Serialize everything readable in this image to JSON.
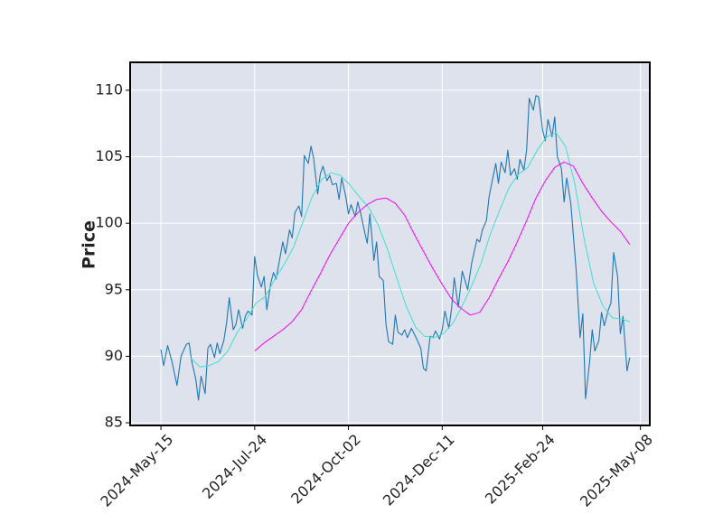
{
  "chart_data": {
    "type": "line",
    "title": "",
    "xlabel": "",
    "ylabel": "Price",
    "x_tick_labels": [
      "2024-May-15",
      "2024-Jul-24",
      "2024-Oct-02",
      "2024-Dec-11",
      "2025-Feb-24",
      "2025-May-08"
    ],
    "y_ticks": [
      85,
      90,
      95,
      100,
      105,
      110
    ],
    "ylim": [
      84.8,
      112.1
    ],
    "xlim": [
      "2024-04-22",
      "2025-05-15"
    ],
    "grid": true,
    "colors": {
      "plot_background": "#dde2ed",
      "grid": "#ffffff",
      "frame": "#000000"
    },
    "series": [
      {
        "color": "#1f77b4",
        "points": [
          [
            "2024-05-15",
            90.5
          ],
          [
            "2024-05-17",
            89.3
          ],
          [
            "2024-05-20",
            90.8
          ],
          [
            "2024-05-23",
            89.7
          ],
          [
            "2024-05-27",
            87.8
          ],
          [
            "2024-05-30",
            90.0
          ],
          [
            "2024-06-03",
            90.9
          ],
          [
            "2024-06-05",
            91.0
          ],
          [
            "2024-06-07",
            89.6
          ],
          [
            "2024-06-10",
            88.3
          ],
          [
            "2024-06-12",
            86.7
          ],
          [
            "2024-06-14",
            88.5
          ],
          [
            "2024-06-17",
            87.2
          ],
          [
            "2024-06-19",
            90.6
          ],
          [
            "2024-06-21",
            90.9
          ],
          [
            "2024-06-24",
            89.9
          ],
          [
            "2024-06-26",
            91.0
          ],
          [
            "2024-06-28",
            90.2
          ],
          [
            "2024-07-01",
            91.2
          ],
          [
            "2024-07-03",
            92.5
          ],
          [
            "2024-07-05",
            94.4
          ],
          [
            "2024-07-08",
            92.0
          ],
          [
            "2024-07-10",
            92.4
          ],
          [
            "2024-07-12",
            93.5
          ],
          [
            "2024-07-15",
            92.1
          ],
          [
            "2024-07-17",
            93.0
          ],
          [
            "2024-07-19",
            93.4
          ],
          [
            "2024-07-22",
            93.1
          ],
          [
            "2024-07-24",
            97.5
          ],
          [
            "2024-07-26",
            96.1
          ],
          [
            "2024-07-29",
            95.2
          ],
          [
            "2024-07-31",
            96.0
          ],
          [
            "2024-08-02",
            93.5
          ],
          [
            "2024-08-05",
            95.5
          ],
          [
            "2024-08-07",
            96.3
          ],
          [
            "2024-08-09",
            95.8
          ],
          [
            "2024-08-12",
            97.5
          ],
          [
            "2024-08-14",
            98.6
          ],
          [
            "2024-08-16",
            97.7
          ],
          [
            "2024-08-19",
            99.5
          ],
          [
            "2024-08-21",
            98.9
          ],
          [
            "2024-08-23",
            100.8
          ],
          [
            "2024-08-26",
            101.3
          ],
          [
            "2024-08-28",
            100.5
          ],
          [
            "2024-08-30",
            105.1
          ],
          [
            "2024-09-02",
            104.5
          ],
          [
            "2024-09-04",
            105.8
          ],
          [
            "2024-09-06",
            104.9
          ],
          [
            "2024-09-09",
            102.2
          ],
          [
            "2024-09-11",
            103.7
          ],
          [
            "2024-09-13",
            104.3
          ],
          [
            "2024-09-16",
            103.2
          ],
          [
            "2024-09-18",
            103.6
          ],
          [
            "2024-09-20",
            102.9
          ],
          [
            "2024-09-23",
            103.0
          ],
          [
            "2024-09-25",
            101.8
          ],
          [
            "2024-09-27",
            103.4
          ],
          [
            "2024-09-30",
            102.0
          ],
          [
            "2024-10-02",
            100.7
          ],
          [
            "2024-10-04",
            101.4
          ],
          [
            "2024-10-07",
            100.5
          ],
          [
            "2024-10-09",
            101.6
          ],
          [
            "2024-10-11",
            100.8
          ],
          [
            "2024-10-14",
            99.4
          ],
          [
            "2024-10-16",
            98.5
          ],
          [
            "2024-10-18",
            100.7
          ],
          [
            "2024-10-21",
            97.2
          ],
          [
            "2024-10-23",
            98.6
          ],
          [
            "2024-10-25",
            96.0
          ],
          [
            "2024-10-28",
            95.7
          ],
          [
            "2024-10-30",
            92.4
          ],
          [
            "2024-11-01",
            91.1
          ],
          [
            "2024-11-04",
            90.9
          ],
          [
            "2024-11-06",
            93.1
          ],
          [
            "2024-11-08",
            91.8
          ],
          [
            "2024-11-11",
            91.6
          ],
          [
            "2024-11-13",
            92.0
          ],
          [
            "2024-11-15",
            91.4
          ],
          [
            "2024-11-18",
            92.1
          ],
          [
            "2024-11-20",
            91.7
          ],
          [
            "2024-11-22",
            91.3
          ],
          [
            "2024-11-25",
            90.6
          ],
          [
            "2024-11-27",
            89.1
          ],
          [
            "2024-11-29",
            88.9
          ],
          [
            "2024-12-02",
            91.5
          ],
          [
            "2024-12-04",
            91.4
          ],
          [
            "2024-12-06",
            91.9
          ],
          [
            "2024-12-09",
            91.3
          ],
          [
            "2024-12-11",
            92.0
          ],
          [
            "2024-12-13",
            93.4
          ],
          [
            "2024-12-16",
            92.1
          ],
          [
            "2024-12-18",
            93.6
          ],
          [
            "2024-12-20",
            95.9
          ],
          [
            "2024-12-23",
            93.7
          ],
          [
            "2024-12-26",
            96.4
          ],
          [
            "2024-12-30",
            95.0
          ],
          [
            "2025-01-02",
            97.0
          ],
          [
            "2025-01-06",
            98.8
          ],
          [
            "2025-01-08",
            98.6
          ],
          [
            "2025-01-10",
            99.5
          ],
          [
            "2025-01-13",
            100.2
          ],
          [
            "2025-01-15",
            102.0
          ],
          [
            "2025-01-17",
            103.0
          ],
          [
            "2025-01-20",
            104.5
          ],
          [
            "2025-01-22",
            103.0
          ],
          [
            "2025-01-24",
            104.6
          ],
          [
            "2025-01-27",
            103.8
          ],
          [
            "2025-01-29",
            105.5
          ],
          [
            "2025-01-31",
            103.6
          ],
          [
            "2025-02-03",
            104.1
          ],
          [
            "2025-02-05",
            103.3
          ],
          [
            "2025-02-07",
            104.8
          ],
          [
            "2025-02-10",
            104.0
          ],
          [
            "2025-02-12",
            105.5
          ],
          [
            "2025-02-14",
            109.4
          ],
          [
            "2025-02-17",
            108.5
          ],
          [
            "2025-02-19",
            109.6
          ],
          [
            "2025-02-21",
            109.5
          ],
          [
            "2025-02-24",
            107.0
          ],
          [
            "2025-02-26",
            106.2
          ],
          [
            "2025-02-28",
            107.8
          ],
          [
            "2025-03-03",
            106.5
          ],
          [
            "2025-03-05",
            108.0
          ],
          [
            "2025-03-07",
            105.0
          ],
          [
            "2025-03-10",
            104.1
          ],
          [
            "2025-03-12",
            101.6
          ],
          [
            "2025-03-14",
            103.4
          ],
          [
            "2025-03-17",
            101.5
          ],
          [
            "2025-03-19",
            99.0
          ],
          [
            "2025-03-21",
            96.5
          ],
          [
            "2025-03-24",
            91.4
          ],
          [
            "2025-03-26",
            93.2
          ],
          [
            "2025-03-28",
            86.8
          ],
          [
            "2025-03-31",
            89.5
          ],
          [
            "2025-04-02",
            92.0
          ],
          [
            "2025-04-04",
            90.4
          ],
          [
            "2025-04-07",
            91.2
          ],
          [
            "2025-04-09",
            93.3
          ],
          [
            "2025-04-11",
            92.3
          ],
          [
            "2025-04-14",
            93.5
          ],
          [
            "2025-04-16",
            94.0
          ],
          [
            "2025-04-18",
            97.8
          ],
          [
            "2025-04-21",
            96.0
          ],
          [
            "2025-04-23",
            91.7
          ],
          [
            "2025-04-25",
            93.0
          ],
          [
            "2025-04-28",
            88.9
          ],
          [
            "2025-04-30",
            89.9
          ]
        ]
      },
      {
        "color": "#40e0d0",
        "points": [
          [
            "2024-06-06",
            89.9
          ],
          [
            "2024-06-13",
            89.2
          ],
          [
            "2024-06-20",
            89.3
          ],
          [
            "2024-06-27",
            89.6
          ],
          [
            "2024-07-04",
            90.4
          ],
          [
            "2024-07-11",
            91.8
          ],
          [
            "2024-07-18",
            92.8
          ],
          [
            "2024-07-25",
            94.0
          ],
          [
            "2024-08-01",
            94.5
          ],
          [
            "2024-08-08",
            95.8
          ],
          [
            "2024-08-15",
            96.9
          ],
          [
            "2024-08-22",
            98.2
          ],
          [
            "2024-08-29",
            100.1
          ],
          [
            "2024-09-05",
            102.0
          ],
          [
            "2024-09-12",
            103.3
          ],
          [
            "2024-09-19",
            103.8
          ],
          [
            "2024-09-26",
            103.6
          ],
          [
            "2024-10-03",
            102.9
          ],
          [
            "2024-10-10",
            102.0
          ],
          [
            "2024-10-17",
            101.2
          ],
          [
            "2024-10-24",
            99.9
          ],
          [
            "2024-10-31",
            98.1
          ],
          [
            "2024-11-07",
            95.9
          ],
          [
            "2024-11-14",
            93.8
          ],
          [
            "2024-11-21",
            92.2
          ],
          [
            "2024-11-28",
            91.5
          ],
          [
            "2024-12-05",
            91.4
          ],
          [
            "2024-12-12",
            91.7
          ],
          [
            "2024-12-19",
            92.5
          ],
          [
            "2024-12-26",
            93.8
          ],
          [
            "2025-01-02",
            95.3
          ],
          [
            "2025-01-09",
            97.0
          ],
          [
            "2025-01-16",
            99.2
          ],
          [
            "2025-01-23",
            101.0
          ],
          [
            "2025-01-30",
            102.7
          ],
          [
            "2025-02-06",
            103.7
          ],
          [
            "2025-02-13",
            104.2
          ],
          [
            "2025-02-20",
            105.5
          ],
          [
            "2025-02-27",
            106.5
          ],
          [
            "2025-03-06",
            106.8
          ],
          [
            "2025-03-13",
            105.8
          ],
          [
            "2025-03-20",
            103.0
          ],
          [
            "2025-03-27",
            98.8
          ],
          [
            "2025-04-03",
            95.5
          ],
          [
            "2025-04-10",
            93.8
          ],
          [
            "2025-04-17",
            92.9
          ],
          [
            "2025-04-24",
            92.8
          ],
          [
            "2025-04-30",
            92.6
          ]
        ]
      },
      {
        "color": "#ff00ff",
        "points": [
          [
            "2024-07-24",
            90.4
          ],
          [
            "2024-07-31",
            91.0
          ],
          [
            "2024-08-07",
            91.5
          ],
          [
            "2024-08-14",
            92.0
          ],
          [
            "2024-08-21",
            92.6
          ],
          [
            "2024-08-28",
            93.5
          ],
          [
            "2024-09-04",
            94.9
          ],
          [
            "2024-09-11",
            96.2
          ],
          [
            "2024-09-18",
            97.6
          ],
          [
            "2024-09-25",
            98.8
          ],
          [
            "2024-10-02",
            100.0
          ],
          [
            "2024-10-09",
            100.8
          ],
          [
            "2024-10-16",
            101.4
          ],
          [
            "2024-10-23",
            101.8
          ],
          [
            "2024-10-30",
            101.9
          ],
          [
            "2024-11-06",
            101.5
          ],
          [
            "2024-11-13",
            100.6
          ],
          [
            "2024-11-20",
            99.2
          ],
          [
            "2024-11-27",
            97.9
          ],
          [
            "2024-12-04",
            96.6
          ],
          [
            "2024-12-11",
            95.4
          ],
          [
            "2024-12-18",
            94.3
          ],
          [
            "2024-12-25",
            93.6
          ],
          [
            "2025-01-01",
            93.1
          ],
          [
            "2025-01-08",
            93.3
          ],
          [
            "2025-01-15",
            94.4
          ],
          [
            "2025-01-22",
            95.8
          ],
          [
            "2025-01-29",
            97.1
          ],
          [
            "2025-02-05",
            98.6
          ],
          [
            "2025-02-12",
            100.2
          ],
          [
            "2025-02-19",
            101.9
          ],
          [
            "2025-02-26",
            103.2
          ],
          [
            "2025-03-05",
            104.2
          ],
          [
            "2025-03-12",
            104.6
          ],
          [
            "2025-03-19",
            104.3
          ],
          [
            "2025-03-26",
            103.0
          ],
          [
            "2025-04-02",
            101.9
          ],
          [
            "2025-04-09",
            100.9
          ],
          [
            "2025-04-16",
            100.1
          ],
          [
            "2025-04-23",
            99.4
          ],
          [
            "2025-04-30",
            98.4
          ]
        ]
      }
    ]
  }
}
